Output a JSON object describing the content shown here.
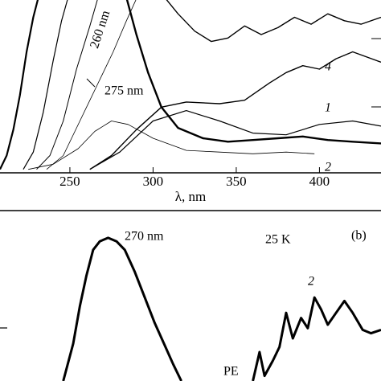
{
  "chart_data": [
    {
      "type": "line",
      "xlabel": "λ, nm",
      "xlim": [
        208,
        437
      ],
      "ylim": [
        0,
        1
      ],
      "xticks": [
        250,
        300,
        350,
        400
      ],
      "annotations": [
        "260 nm",
        "275 nm",
        "4",
        "1",
        "2"
      ],
      "series": [
        {
          "color": "#000",
          "line_width": 2.2,
          "x": [
            208,
            212,
            216,
            220,
            224,
            228,
            232
          ],
          "values": [
            0.02,
            0.1,
            0.25,
            0.45,
            0.7,
            0.9,
            1.05
          ]
        },
        {
          "color": "#000",
          "line_width": 1.2,
          "x": [
            222,
            228,
            234,
            240,
            245,
            250
          ],
          "values": [
            0.02,
            0.12,
            0.35,
            0.65,
            0.88,
            1.05
          ]
        },
        {
          "color": "#000",
          "line_width": 1.0,
          "x": [
            230,
            238,
            246,
            254,
            262,
            268
          ],
          "values": [
            0.02,
            0.1,
            0.3,
            0.6,
            0.85,
            1.05
          ]
        },
        {
          "color": "#000",
          "line_width": 0.8,
          "x": [
            236,
            246,
            256,
            266,
            276,
            284,
            292
          ],
          "values": [
            0.02,
            0.1,
            0.3,
            0.5,
            0.7,
            0.88,
            1.05
          ]
        },
        {
          "color": "#000",
          "line_width": 2.4,
          "x": [
            283,
            290,
            297,
            305,
            315,
            330,
            345,
            360,
            375,
            390,
            405,
            420,
            437
          ],
          "values": [
            1.05,
            0.8,
            0.58,
            0.38,
            0.26,
            0.2,
            0.18,
            0.19,
            0.2,
            0.21,
            0.19,
            0.18,
            0.17
          ]
        },
        {
          "color": "#000",
          "line_width": 1.4,
          "x": [
            262,
            275,
            290,
            305,
            320,
            340,
            355,
            370,
            380,
            390,
            400,
            410,
            420,
            437
          ],
          "values": [
            0.02,
            0.1,
            0.25,
            0.38,
            0.41,
            0.4,
            0.42,
            0.52,
            0.58,
            0.62,
            0.6,
            0.66,
            0.7,
            0.64
          ]
        },
        {
          "color": "#000",
          "line_width": 0.8,
          "x": [
            225,
            240,
            255,
            265,
            275,
            285,
            300,
            320,
            340,
            360,
            380,
            397
          ],
          "values": [
            0.02,
            0.05,
            0.14,
            0.24,
            0.3,
            0.28,
            0.2,
            0.13,
            0.12,
            0.11,
            0.12,
            0.11
          ]
        },
        {
          "color": "#000",
          "line_width": 1.2,
          "x": [
            262,
            280,
            300,
            320,
            340,
            360,
            380,
            400,
            420,
            437
          ],
          "values": [
            0.02,
            0.12,
            0.3,
            0.36,
            0.3,
            0.23,
            0.22,
            0.28,
            0.3,
            0.27
          ]
        },
        {
          "color": "#000",
          "line_width": 1.4,
          "x": [
            304,
            315,
            325,
            335,
            345,
            355,
            365,
            375,
            385,
            395,
            405,
            415,
            425,
            437
          ],
          "values": [
            1.05,
            0.92,
            0.82,
            0.76,
            0.78,
            0.85,
            0.8,
            0.84,
            0.9,
            0.86,
            0.92,
            0.88,
            0.86,
            0.9
          ]
        }
      ]
    },
    {
      "type": "line",
      "xlim": [
        208,
        437
      ],
      "ylim": [
        0,
        1
      ],
      "annotations": [
        "270 nm",
        "25 K",
        "(b)",
        "2",
        "PE"
      ],
      "series": [
        {
          "color": "#000",
          "line_width": 3,
          "x": [
            246,
            252,
            256,
            260,
            264,
            268,
            273,
            278,
            283,
            289,
            295,
            301,
            307,
            312,
            317,
            null,
            360,
            364,
            367,
            372,
            376,
            380,
            384,
            389,
            393,
            397,
            401,
            405,
            410,
            415,
            420,
            426,
            431,
            437
          ],
          "values": [
            0.0,
            0.22,
            0.44,
            0.62,
            0.77,
            0.82,
            0.84,
            0.82,
            0.77,
            0.64,
            0.49,
            0.34,
            0.21,
            0.1,
            0.0,
            null,
            0.0,
            0.17,
            0.03,
            0.12,
            0.2,
            0.4,
            0.25,
            0.37,
            0.31,
            0.49,
            0.42,
            0.33,
            0.4,
            0.47,
            0.4,
            0.3,
            0.28,
            0.3
          ]
        }
      ]
    }
  ]
}
